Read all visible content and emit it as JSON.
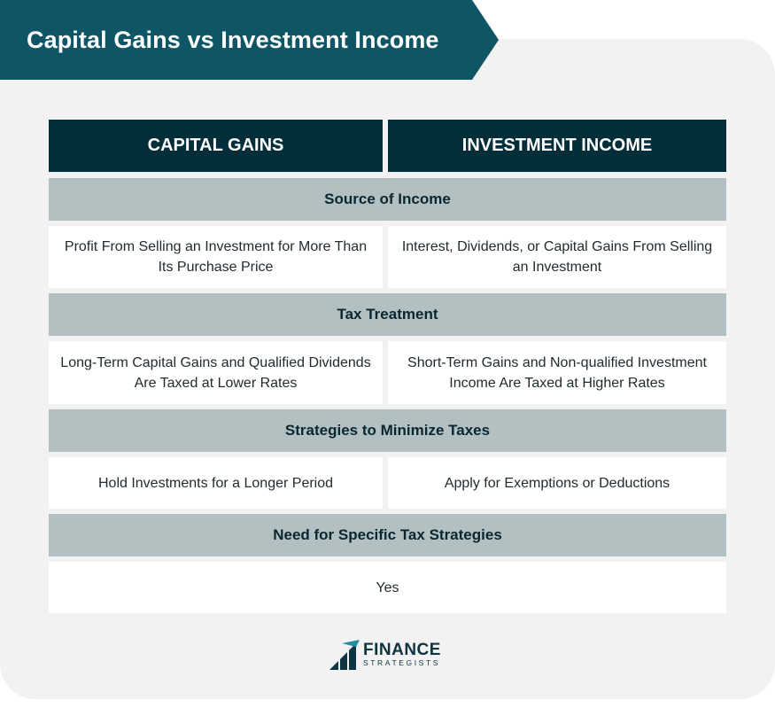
{
  "title": "Capital Gains vs Investment Income",
  "columns": [
    "CAPITAL GAINS",
    "INVESTMENT INCOME"
  ],
  "sections": [
    {
      "label": "Source of Income",
      "left": "Profit From Selling an Investment for More Than Its Purchase Price",
      "right": "Interest, Dividends, or Capital Gains From Selling an Investment"
    },
    {
      "label": "Tax Treatment",
      "left": "Long-Term Capital Gains and Qualified Dividends Are Taxed at Lower Rates",
      "right": "Short-Term Gains and Non-qualified Investment Income Are Taxed at Higher Rates"
    },
    {
      "label": "Strategies to Minimize Taxes",
      "left": "Hold Investments for a Longer Period",
      "right": "Apply for Exemptions or Deductions"
    },
    {
      "label": "Need for Specific Tax Strategies",
      "both": "Yes"
    }
  ],
  "logo": {
    "line1": "FINANCE",
    "line2": "STRATEGISTS"
  },
  "colors": {
    "banner": "#0e5566",
    "header": "#022e3a",
    "section": "#b2c0c1",
    "card": "#f2f2f2"
  }
}
